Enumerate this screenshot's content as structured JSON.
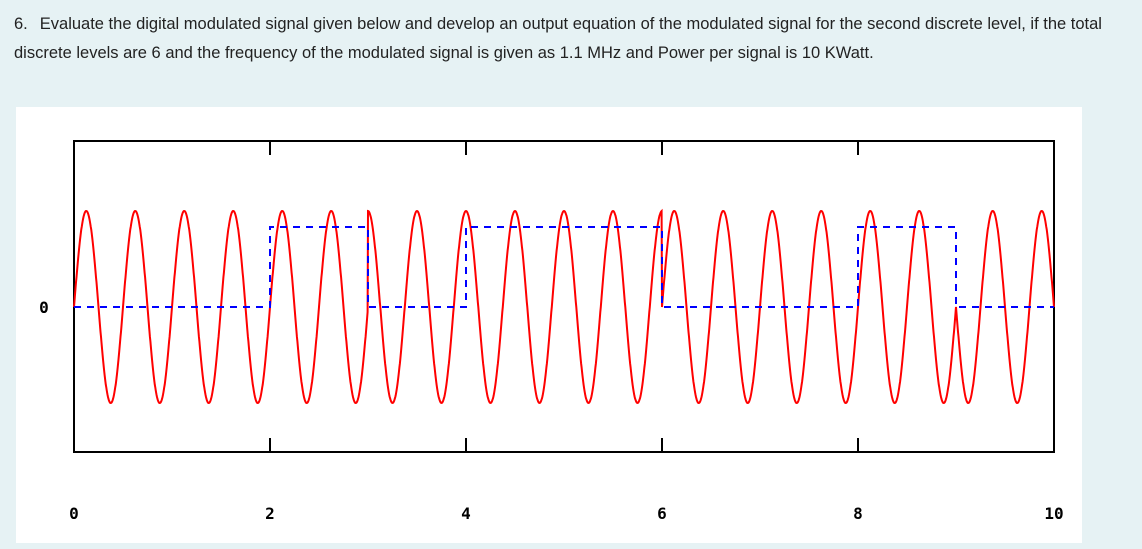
{
  "question": {
    "number": "6.",
    "text": "Evaluate the digital modulated signal given below and develop an output equation of the modulated signal for the second discrete level, if the total discrete levels are 6 and the frequency of the modulated signal is given as 1.1 MHz and Power per signal is 10 KWatt."
  },
  "chart_data": {
    "type": "line",
    "title": "",
    "xlabel": "",
    "ylabel": "",
    "xlim": [
      0,
      10
    ],
    "x_ticks": [
      "0",
      "2",
      "4",
      "6",
      "8",
      "10"
    ],
    "x_tick_values": [
      0,
      2,
      4,
      6,
      8,
      10
    ],
    "y_tick_label": "0",
    "y_tick_value": 0,
    "grid": false,
    "series": [
      {
        "style": "dashed",
        "color": "#0000ff",
        "kind": "digital data",
        "x": [
          0,
          2,
          2,
          3,
          3,
          4,
          4,
          6,
          6,
          8,
          8,
          9,
          9,
          10
        ],
        "y": [
          0,
          0,
          1,
          1,
          0,
          0,
          1,
          1,
          0,
          0,
          1,
          1,
          0,
          0
        ]
      },
      {
        "style": "solid",
        "color": "#ff0000",
        "kind": "modulated carrier",
        "amplitude": 1.2,
        "cycles_per_unit": 2,
        "segment_phase_deg": [
          {
            "x_start": 0,
            "x_end": 3,
            "phase": 0
          },
          {
            "x_start": 3,
            "x_end": 6,
            "phase": 90
          },
          {
            "x_start": 6,
            "x_end": 9,
            "phase": 0
          },
          {
            "x_start": 9,
            "x_end": 10,
            "phase": 180
          }
        ]
      }
    ]
  }
}
